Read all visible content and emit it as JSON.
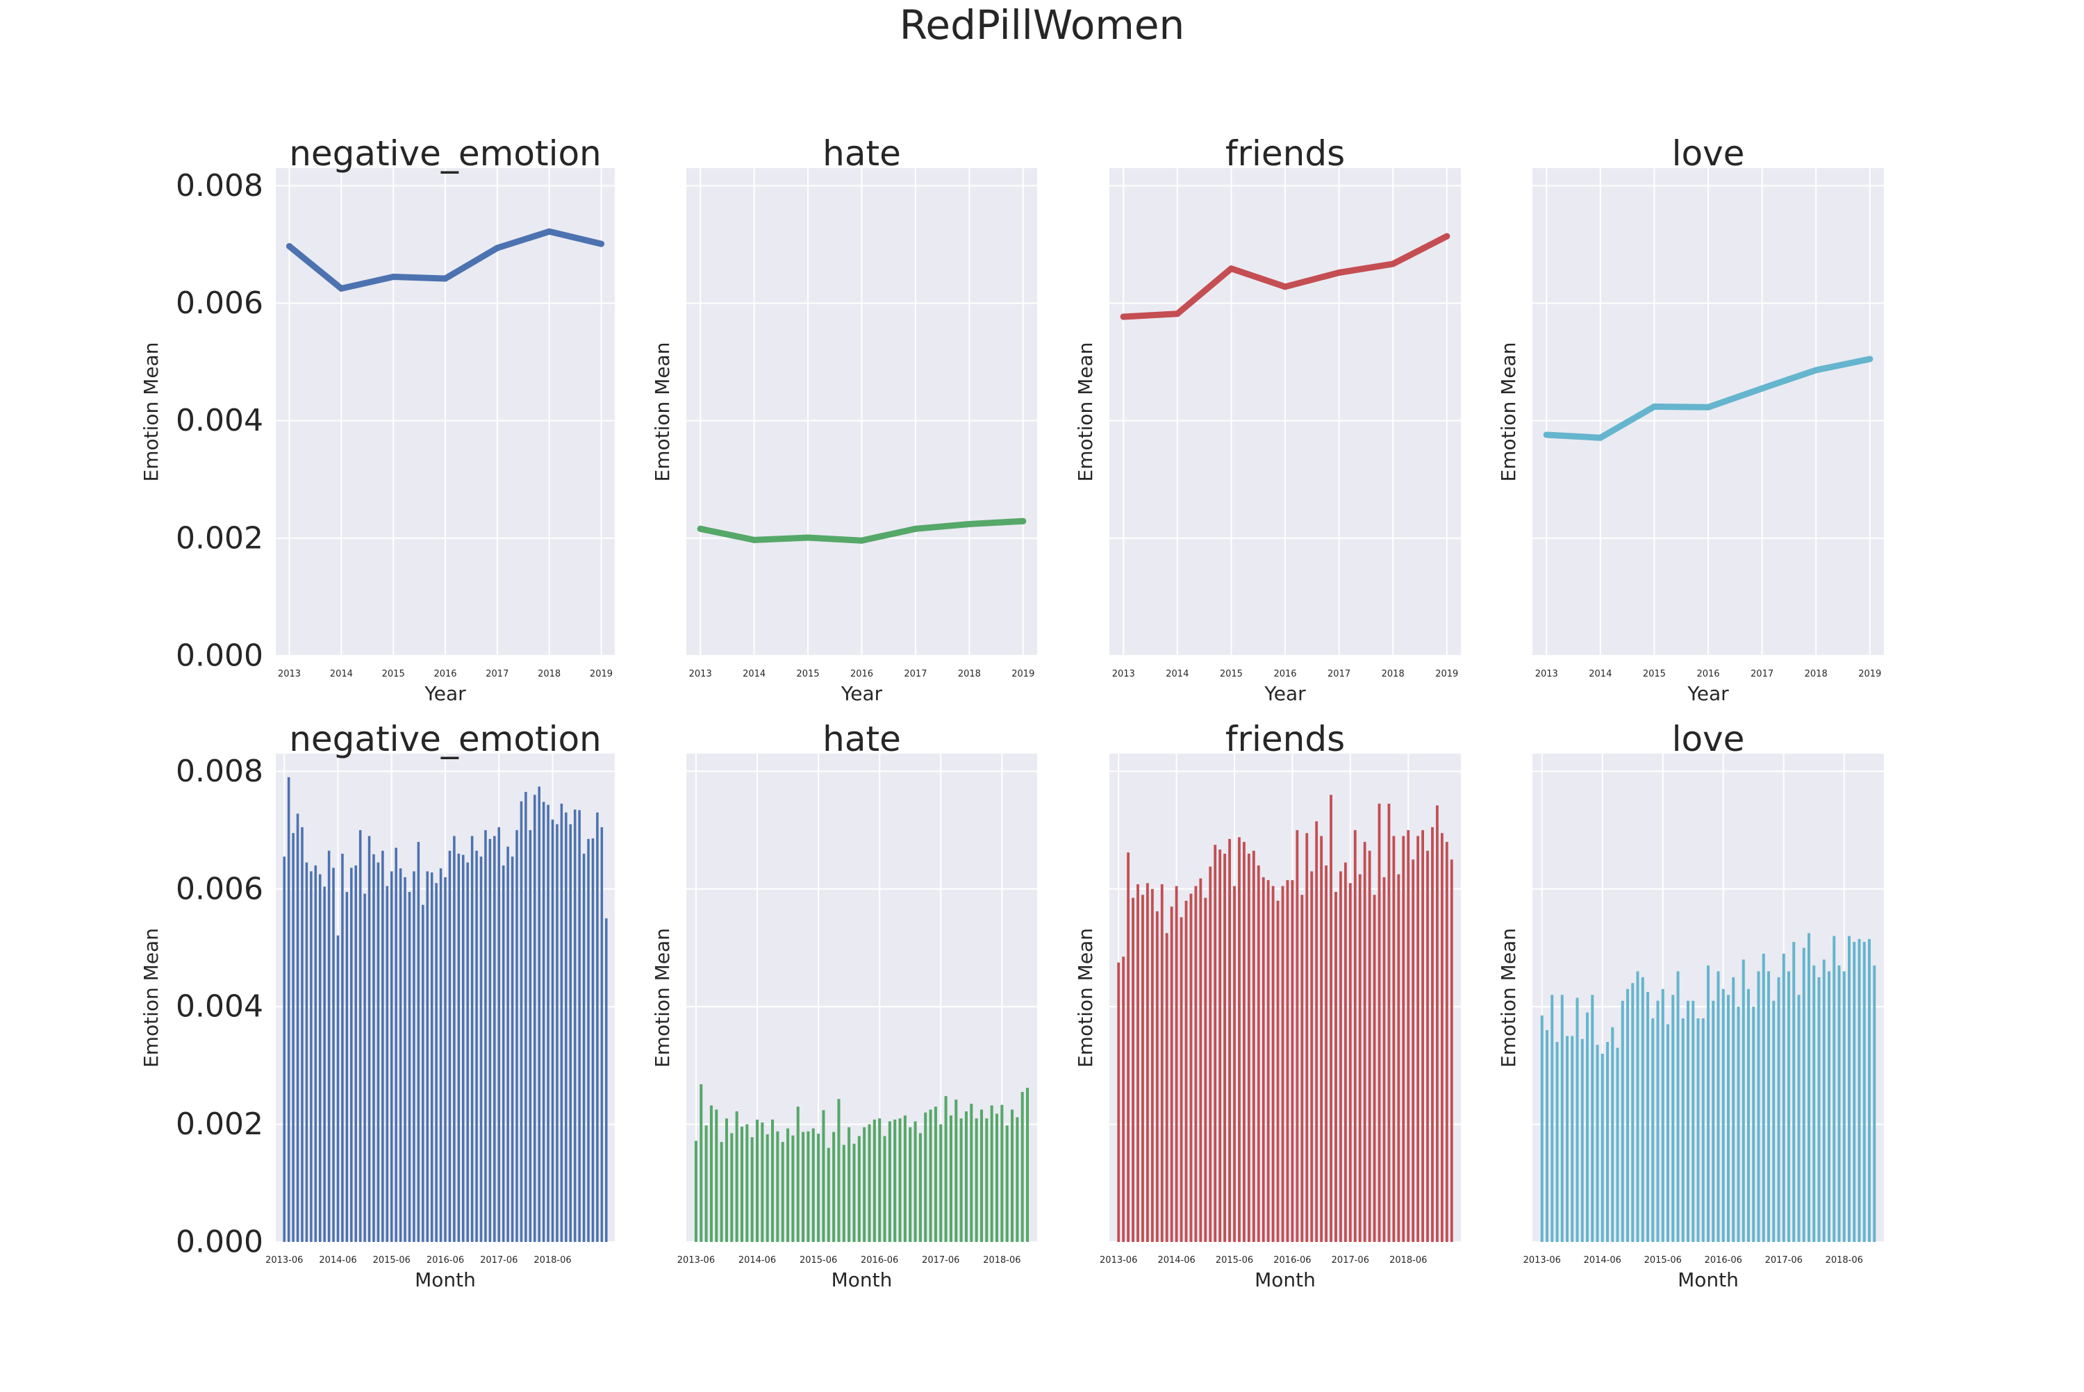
{
  "figure": {
    "title": "RedPillWomen",
    "colors": {
      "background": "#ffffff",
      "axes": "#eaeaf2",
      "grid": "#ffffff",
      "text": "#262626"
    }
  },
  "chart_data": [
    {
      "type": "line",
      "title": "negative_emotion",
      "xlabel": "Year",
      "ylabel": "Emotion Mean",
      "x": [
        "2013",
        "2014",
        "2015",
        "2016",
        "2017",
        "2018",
        "2019"
      ],
      "series": [
        {
          "values": [
            0.00697,
            0.00625,
            0.00645,
            0.00642,
            0.00694,
            0.00722,
            0.00701
          ]
        }
      ],
      "ylim": [
        0,
        0.0083
      ],
      "yticks": [
        "0.000",
        "0.002",
        "0.004",
        "0.006",
        "0.008"
      ],
      "show_ytick_labels": true,
      "color": "#4c72b0",
      "grid": true
    },
    {
      "type": "line",
      "title": "hate",
      "xlabel": "Year",
      "ylabel": "Emotion Mean",
      "x": [
        "2013",
        "2014",
        "2015",
        "2016",
        "2017",
        "2018",
        "2019"
      ],
      "series": [
        {
          "values": [
            0.00216,
            0.00197,
            0.00201,
            0.00196,
            0.00216,
            0.00224,
            0.00229
          ]
        }
      ],
      "ylim": [
        0,
        0.0083
      ],
      "yticks": [
        "0.000",
        "0.002",
        "0.004",
        "0.006",
        "0.008"
      ],
      "show_ytick_labels": false,
      "color": "#55a868",
      "grid": true
    },
    {
      "type": "line",
      "title": "friends",
      "xlabel": "Year",
      "ylabel": "Emotion Mean",
      "x": [
        "2013",
        "2014",
        "2015",
        "2016",
        "2017",
        "2018",
        "2019"
      ],
      "series": [
        {
          "values": [
            0.00577,
            0.00582,
            0.00659,
            0.00628,
            0.00652,
            0.00667,
            0.00714
          ]
        }
      ],
      "ylim": [
        0,
        0.0083
      ],
      "yticks": [
        "0.000",
        "0.002",
        "0.004",
        "0.006",
        "0.008"
      ],
      "show_ytick_labels": false,
      "color": "#c44e52",
      "grid": true
    },
    {
      "type": "line",
      "title": "love",
      "xlabel": "Year",
      "ylabel": "Emotion Mean",
      "x": [
        "2013",
        "2014",
        "2015",
        "2016",
        "2017",
        "2018",
        "2019"
      ],
      "series": [
        {
          "values": [
            0.00376,
            0.00371,
            0.00424,
            0.00423,
            0.00455,
            0.00486,
            0.00505
          ]
        }
      ],
      "ylim": [
        0,
        0.0083
      ],
      "yticks": [
        "0.000",
        "0.002",
        "0.004",
        "0.006",
        "0.008"
      ],
      "show_ytick_labels": false,
      "color": "#64b5cd",
      "grid": true
    },
    {
      "type": "bar",
      "title": "negative_emotion",
      "xlabel": "Month",
      "ylabel": "Emotion Mean",
      "start_month": "2013-06",
      "xticks": [
        "2013-06",
        "2014-06",
        "2015-06",
        "2016-06",
        "2017-06",
        "2018-06"
      ],
      "values": [
        0.00655,
        0.0079,
        0.00695,
        0.00728,
        0.00705,
        0.00645,
        0.0063,
        0.0064,
        0.00625,
        0.00604,
        0.00665,
        0.00636,
        0.00521,
        0.0066,
        0.00595,
        0.00636,
        0.0064,
        0.007,
        0.00592,
        0.0069,
        0.00659,
        0.00645,
        0.00665,
        0.00605,
        0.0063,
        0.0067,
        0.00635,
        0.0062,
        0.00595,
        0.0063,
        0.0068,
        0.00573,
        0.0063,
        0.00628,
        0.0061,
        0.00635,
        0.0062,
        0.00665,
        0.0069,
        0.0066,
        0.00658,
        0.00645,
        0.0069,
        0.00665,
        0.00655,
        0.007,
        0.00685,
        0.0069,
        0.00705,
        0.0064,
        0.00672,
        0.00655,
        0.007,
        0.00749,
        0.00765,
        0.007,
        0.0076,
        0.00774,
        0.00748,
        0.00743,
        0.00718,
        0.0071,
        0.00745,
        0.0073,
        0.0071,
        0.00735,
        0.00734,
        0.0066,
        0.00685,
        0.00686,
        0.0073,
        0.00705,
        0.0055
      ],
      "ylim": [
        0,
        0.0083
      ],
      "yticks": [
        "0.000",
        "0.002",
        "0.004",
        "0.006",
        "0.008"
      ],
      "show_ytick_labels": true,
      "color": "#4c72b0",
      "grid": true
    },
    {
      "type": "bar",
      "title": "hate",
      "xlabel": "Month",
      "ylabel": "Emotion Mean",
      "start_month": "2013-06",
      "xticks": [
        "2013-06",
        "2014-06",
        "2015-06",
        "2016-06",
        "2017-06",
        "2018-06"
      ],
      "values": [
        0.00172,
        0.00268,
        0.00198,
        0.00232,
        0.00225,
        0.0017,
        0.0021,
        0.00185,
        0.00222,
        0.00196,
        0.002,
        0.00178,
        0.00208,
        0.00203,
        0.00183,
        0.00208,
        0.00188,
        0.0017,
        0.00193,
        0.00181,
        0.0023,
        0.00187,
        0.00188,
        0.00193,
        0.00184,
        0.00224,
        0.0016,
        0.00187,
        0.00243,
        0.00165,
        0.00195,
        0.00167,
        0.0018,
        0.00195,
        0.002,
        0.00208,
        0.0021,
        0.0018,
        0.00205,
        0.00208,
        0.0021,
        0.00215,
        0.00195,
        0.00205,
        0.00185,
        0.0022,
        0.00225,
        0.0023,
        0.002,
        0.00248,
        0.00215,
        0.00242,
        0.0021,
        0.00222,
        0.00235,
        0.0021,
        0.00225,
        0.0021,
        0.00232,
        0.00218,
        0.00233,
        0.00198,
        0.00225,
        0.00212,
        0.00255,
        0.00262
      ],
      "ylim": [
        0,
        0.0083
      ],
      "yticks": [
        "0.000",
        "0.002",
        "0.004",
        "0.006",
        "0.008"
      ],
      "show_ytick_labels": false,
      "color": "#55a868",
      "grid": true
    },
    {
      "type": "bar",
      "title": "friends",
      "xlabel": "Month",
      "ylabel": "Emotion Mean",
      "start_month": "2013-06",
      "xticks": [
        "2013-06",
        "2014-06",
        "2015-06",
        "2016-06",
        "2017-06",
        "2018-06"
      ],
      "values": [
        0.00475,
        0.00485,
        0.00662,
        0.00585,
        0.00608,
        0.0059,
        0.0061,
        0.006,
        0.00562,
        0.00608,
        0.00525,
        0.0057,
        0.00605,
        0.00552,
        0.0058,
        0.00592,
        0.00605,
        0.00618,
        0.00585,
        0.00638,
        0.00675,
        0.00667,
        0.0066,
        0.00685,
        0.00605,
        0.00688,
        0.0068,
        0.0066,
        0.00665,
        0.0064,
        0.0062,
        0.00615,
        0.00605,
        0.0058,
        0.00605,
        0.00615,
        0.00615,
        0.007,
        0.0059,
        0.00695,
        0.0063,
        0.00715,
        0.0069,
        0.0064,
        0.0076,
        0.00595,
        0.0063,
        0.00645,
        0.0061,
        0.007,
        0.00625,
        0.0068,
        0.00665,
        0.0059,
        0.00745,
        0.0062,
        0.00745,
        0.0069,
        0.00625,
        0.0069,
        0.007,
        0.0065,
        0.0069,
        0.007,
        0.00665,
        0.00705,
        0.00742,
        0.00695,
        0.0068,
        0.0065
      ],
      "ylim": [
        0,
        0.0083
      ],
      "yticks": [
        "0.000",
        "0.002",
        "0.004",
        "0.006",
        "0.008"
      ],
      "show_ytick_labels": false,
      "color": "#c44e52",
      "grid": true
    },
    {
      "type": "bar",
      "title": "love",
      "xlabel": "Month",
      "ylabel": "Emotion Mean",
      "start_month": "2013-06",
      "xticks": [
        "2013-06",
        "2014-06",
        "2015-06",
        "2016-06",
        "2017-06",
        "2018-06"
      ],
      "values": [
        0.00385,
        0.0036,
        0.0042,
        0.0034,
        0.0042,
        0.0035,
        0.0035,
        0.00415,
        0.00345,
        0.0039,
        0.0042,
        0.00335,
        0.0032,
        0.0034,
        0.00365,
        0.0033,
        0.0041,
        0.0043,
        0.0044,
        0.0046,
        0.0045,
        0.00425,
        0.0038,
        0.0041,
        0.0043,
        0.0037,
        0.0042,
        0.0046,
        0.0038,
        0.0041,
        0.0041,
        0.0038,
        0.0038,
        0.0047,
        0.0041,
        0.0046,
        0.0043,
        0.0042,
        0.0045,
        0.004,
        0.0048,
        0.0043,
        0.004,
        0.0046,
        0.0049,
        0.0046,
        0.0041,
        0.0045,
        0.0049,
        0.0046,
        0.0051,
        0.0042,
        0.005,
        0.00525,
        0.0047,
        0.0045,
        0.0048,
        0.0046,
        0.0052,
        0.0047,
        0.0046,
        0.0052,
        0.0051,
        0.00515,
        0.0051,
        0.00515,
        0.0047
      ],
      "ylim": [
        0,
        0.0083
      ],
      "yticks": [
        "0.000",
        "0.002",
        "0.004",
        "0.006",
        "0.008"
      ],
      "show_ytick_labels": false,
      "color": "#64b5cd",
      "grid": true
    }
  ]
}
